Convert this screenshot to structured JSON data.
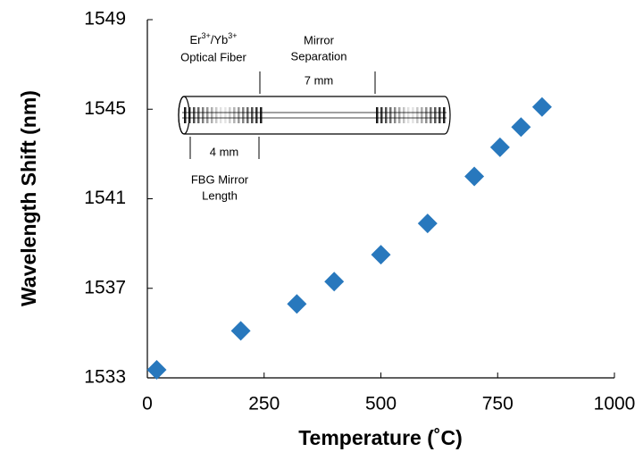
{
  "chart_data": {
    "type": "scatter",
    "x_label": "Temperature (˚C)",
    "y_label": "Wavelength Shift (nm)",
    "x": [
      20,
      200,
      320,
      400,
      500,
      600,
      700,
      755,
      800,
      845
    ],
    "series": [
      {
        "color": "#2878bd",
        "values": [
          1533.36,
          1535.1,
          1536.3,
          1537.3,
          1538.5,
          1539.9,
          1542.0,
          1543.3,
          1544.2,
          1545.1
        ]
      }
    ],
    "xlim": [
      0,
      1000
    ],
    "xticks": [
      0,
      250,
      500,
      750,
      1000
    ],
    "ylim": [
      1533,
      1549
    ],
    "yticks": [
      1533,
      1537,
      1541,
      1545,
      1549
    ],
    "grid": false,
    "inset": {
      "fiber_label": [
        "Er",
        "3+",
        "/Yb",
        "3+"
      ],
      "fiber_label_line2": "Optical Fiber",
      "separation_label": [
        "Mirror",
        "Separation"
      ],
      "separation_value": "7 mm",
      "length_value": "4 mm",
      "length_label": [
        "FBG Mirror",
        "Length"
      ]
    }
  }
}
